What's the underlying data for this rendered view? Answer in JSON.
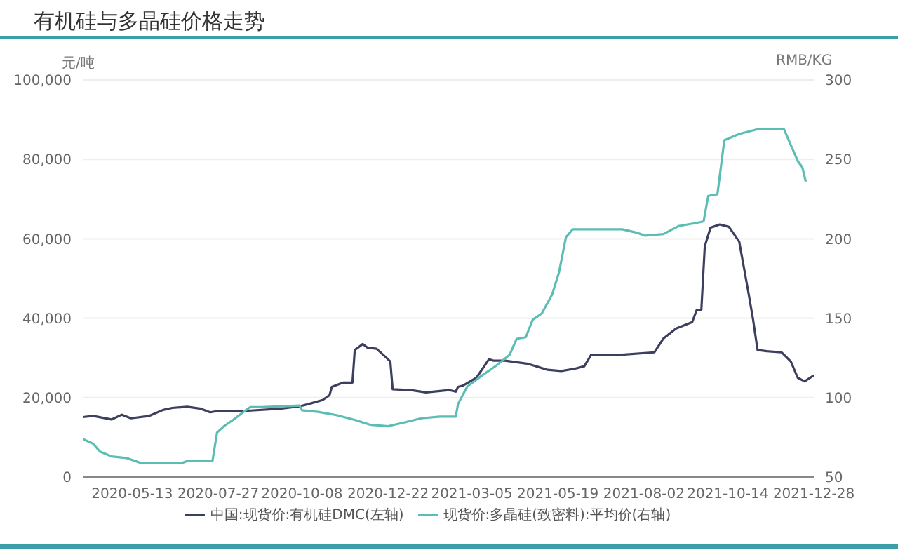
{
  "chart_data": {
    "type": "line",
    "title": "有机硅与多晶硅价格走势",
    "ylabel": "元/吨",
    "y2label": "RMB/KG",
    "xlim": [
      "2020-03-31",
      "2021-12-28"
    ],
    "xticks": [
      "2020-05-13",
      "2020-07-27",
      "2020-10-08",
      "2020-12-22",
      "2021-03-05",
      "2021-05-19",
      "2021-08-02",
      "2021-10-14",
      "2021-12-28"
    ],
    "ylim": [
      0,
      100000
    ],
    "yticks": [
      0,
      {
        "value": 20000,
        "label": "20,000"
      },
      {
        "value": 40000,
        "label": "40,000"
      },
      {
        "value": 60000,
        "label": "60,000"
      },
      {
        "value": 80000,
        "label": "80,000"
      },
      {
        "value": 100000,
        "label": "100,000"
      }
    ],
    "y2lim": [
      50,
      300
    ],
    "y2ticks": [
      50,
      100,
      150,
      200,
      250,
      300
    ],
    "grid": "y",
    "legend": "bottom",
    "marker": "none",
    "line_style": "solid",
    "series": [
      {
        "name": "中国:现货价:有机硅DMC(左轴)",
        "color": "#3d3f5e",
        "x": [
          "2020-03-31",
          "2020-04-09",
          "2020-04-25",
          "2020-05-04",
          "2020-05-12",
          "2020-05-28",
          "2020-06-09",
          "2020-06-17",
          "2020-06-30",
          "2020-07-12",
          "2020-07-20",
          "2020-07-28",
          "2020-08-22",
          "2020-09-19",
          "2020-10-06",
          "2020-10-14",
          "2020-10-26",
          "2020-11-01",
          "2020-11-03",
          "2020-11-13",
          "2020-11-21",
          "2020-11-23",
          "2020-11-30",
          "2020-12-04",
          "2020-12-12",
          "2020-12-20",
          "2020-12-24",
          "2020-12-26",
          "2021-01-11",
          "2021-01-24",
          "2021-02-13",
          "2021-02-19",
          "2021-02-21",
          "2021-02-25",
          "2021-03-09",
          "2021-03-20",
          "2021-03-24",
          "2021-04-03",
          "2021-04-23",
          "2021-05-10",
          "2021-05-22",
          "2021-06-03",
          "2021-06-11",
          "2021-06-17",
          "2021-07-14",
          "2021-08-11",
          "2021-08-19",
          "2021-08-30",
          "2021-09-13",
          "2021-09-17",
          "2021-09-21",
          "2021-09-24",
          "2021-09-29",
          "2021-10-07",
          "2021-10-15",
          "2021-10-24",
          "2021-10-28",
          "2021-11-01",
          "2021-11-05",
          "2021-11-09",
          "2021-11-17",
          "2021-11-30",
          "2021-12-08",
          "2021-12-14",
          "2021-12-20",
          "2021-12-28"
        ],
        "values": [
          15100,
          15400,
          14500,
          15700,
          14800,
          15400,
          16900,
          17400,
          17700,
          17200,
          16300,
          16700,
          16700,
          17200,
          17800,
          18400,
          19400,
          20600,
          22700,
          23800,
          23800,
          32000,
          33500,
          32600,
          32300,
          30200,
          29100,
          22100,
          21900,
          21300,
          21900,
          21500,
          22700,
          23000,
          25000,
          29700,
          29300,
          29300,
          28500,
          27000,
          26700,
          27300,
          27900,
          30800,
          30800,
          31400,
          34900,
          37400,
          39000,
          42100,
          42100,
          58100,
          62800,
          63600,
          63000,
          59300,
          52900,
          46500,
          39800,
          32000,
          31700,
          31400,
          29100,
          25000,
          24100,
          25600
        ]
      },
      {
        "name": "现货价:多晶硅(致密料):平均价(右轴)",
        "color": "#5bbdb3",
        "axis": "y2",
        "x": [
          "2020-03-31",
          "2020-04-09",
          "2020-04-15",
          "2020-04-25",
          "2020-05-08",
          "2020-05-20",
          "2020-06-26",
          "2020-06-30",
          "2020-07-22",
          "2020-07-26",
          "2020-08-01",
          "2020-08-09",
          "2020-08-18",
          "2020-08-24",
          "2020-09-03",
          "2020-10-06",
          "2020-10-08",
          "2020-10-22",
          "2020-11-07",
          "2020-11-23",
          "2020-12-06",
          "2020-12-22",
          "2021-01-03",
          "2021-01-20",
          "2021-02-05",
          "2021-02-19",
          "2021-02-21",
          "2021-03-01",
          "2021-03-14",
          "2021-03-26",
          "2021-04-07",
          "2021-04-13",
          "2021-04-21",
          "2021-04-27",
          "2021-05-05",
          "2021-05-14",
          "2021-05-20",
          "2021-05-26",
          "2021-06-01",
          "2021-07-14",
          "2021-07-26",
          "2021-08-03",
          "2021-08-19",
          "2021-09-01",
          "2021-09-17",
          "2021-09-23",
          "2021-09-27",
          "2021-10-05",
          "2021-10-11",
          "2021-10-24",
          "2021-11-09",
          "2021-12-02",
          "2021-12-08",
          "2021-12-14",
          "2021-12-18",
          "2021-12-21"
        ],
        "values": [
          74,
          71,
          66,
          63,
          62,
          59,
          59,
          60,
          60,
          78,
          82,
          86,
          91,
          94,
          94,
          95,
          92,
          91,
          89,
          86,
          83,
          82,
          84,
          87,
          88,
          88,
          96,
          107,
          114,
          120,
          127,
          137,
          138,
          149,
          153,
          165,
          179,
          201,
          206,
          206,
          204,
          202,
          203,
          208,
          210,
          211,
          227,
          228,
          262,
          266,
          269,
          269,
          259,
          249,
          245,
          236
        ]
      }
    ]
  }
}
